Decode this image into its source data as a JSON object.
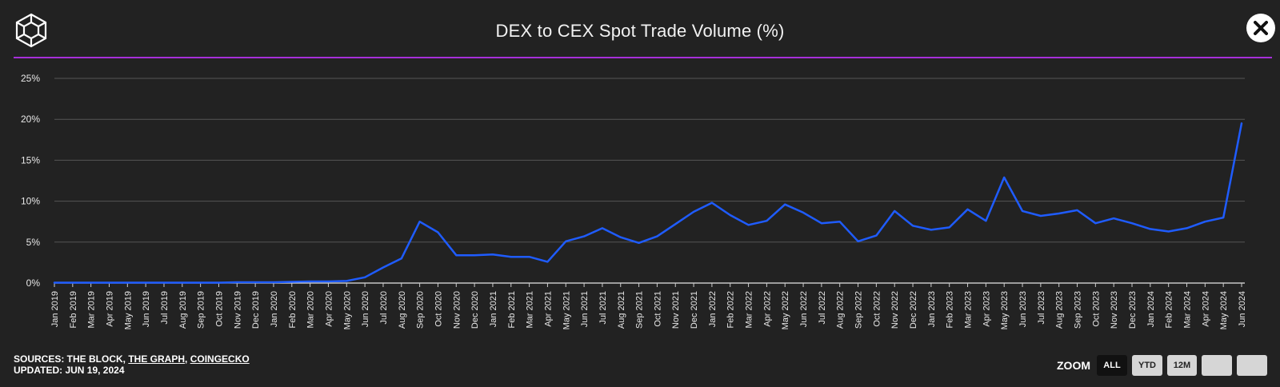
{
  "header": {
    "title": "DEX to CEX Spot Trade Volume (%)",
    "logo_icon": "cube-logo-icon",
    "close_icon": "close-icon"
  },
  "footer": {
    "sources_prefix": "SOURCES: THE BLOCK, ",
    "source_link_1": "THE GRAPH",
    "separator": ", ",
    "source_link_2": "COINGECKO",
    "updated": "UPDATED: JUN 19, 2024"
  },
  "zoom": {
    "label": "ZOOM",
    "buttons": [
      "ALL",
      "YTD",
      "12M",
      "",
      ""
    ],
    "active": "ALL"
  },
  "chart_data": {
    "type": "line",
    "title": "DEX to CEX Spot Trade Volume (%)",
    "xlabel": "",
    "ylabel": "",
    "ylim": [
      0,
      25
    ],
    "yticks": [
      "0%",
      "5%",
      "10%",
      "15%",
      "20%",
      "25%"
    ],
    "grid": true,
    "line_color": "#1f5cff",
    "categories": [
      "Jan 2019",
      "Feb 2019",
      "Mar 2019",
      "Apr 2019",
      "May 2019",
      "Jun 2019",
      "Jul 2019",
      "Aug 2019",
      "Sep 2019",
      "Oct 2019",
      "Nov 2019",
      "Dec 2019",
      "Jan 2020",
      "Feb 2020",
      "Mar 2020",
      "Apr 2020",
      "May 2020",
      "Jun 2020",
      "Jul 2020",
      "Aug 2020",
      "Sep 2020",
      "Oct 2020",
      "Nov 2020",
      "Dec 2020",
      "Jan 2021",
      "Feb 2021",
      "Mar 2021",
      "Apr 2021",
      "May 2021",
      "Jun 2021",
      "Jul 2021",
      "Aug 2021",
      "Sep 2021",
      "Oct 2021",
      "Nov 2021",
      "Dec 2021",
      "Jan 2022",
      "Feb 2022",
      "Mar 2022",
      "Apr 2022",
      "May 2022",
      "Jun 2022",
      "Jul 2022",
      "Aug 2022",
      "Sep 2022",
      "Oct 2022",
      "Nov 2022",
      "Dec 2022",
      "Jan 2023",
      "Feb 2023",
      "Mar 2023",
      "Apr 2023",
      "May 2023",
      "Jun 2023",
      "Jul 2023",
      "Aug 2023",
      "Sep 2023",
      "Oct 2023",
      "Nov 2023",
      "Dec 2023",
      "Jan 2024",
      "Feb 2024",
      "Mar 2024",
      "Apr 2024",
      "May 2024",
      "Jun 2024"
    ],
    "series": [
      {
        "values": [
          0.05,
          0.05,
          0.05,
          0.05,
          0.05,
          0.05,
          0.05,
          0.05,
          0.05,
          0.05,
          0.1,
          0.1,
          0.1,
          0.15,
          0.2,
          0.2,
          0.25,
          0.7,
          1.9,
          3.0,
          7.5,
          6.2,
          3.4,
          3.4,
          3.5,
          3.2,
          3.2,
          2.6,
          5.1,
          5.7,
          6.7,
          5.6,
          4.9,
          5.7,
          7.2,
          8.7,
          9.8,
          8.3,
          7.1,
          7.6,
          9.6,
          8.6,
          7.3,
          7.5,
          5.1,
          5.8,
          8.8,
          7.0,
          6.5,
          6.8,
          9.0,
          7.6,
          12.9,
          8.8,
          8.2,
          8.5,
          8.9,
          7.3,
          7.9,
          7.3,
          6.6,
          6.3,
          6.7,
          7.5,
          8.0,
          19.5
        ]
      }
    ]
  }
}
